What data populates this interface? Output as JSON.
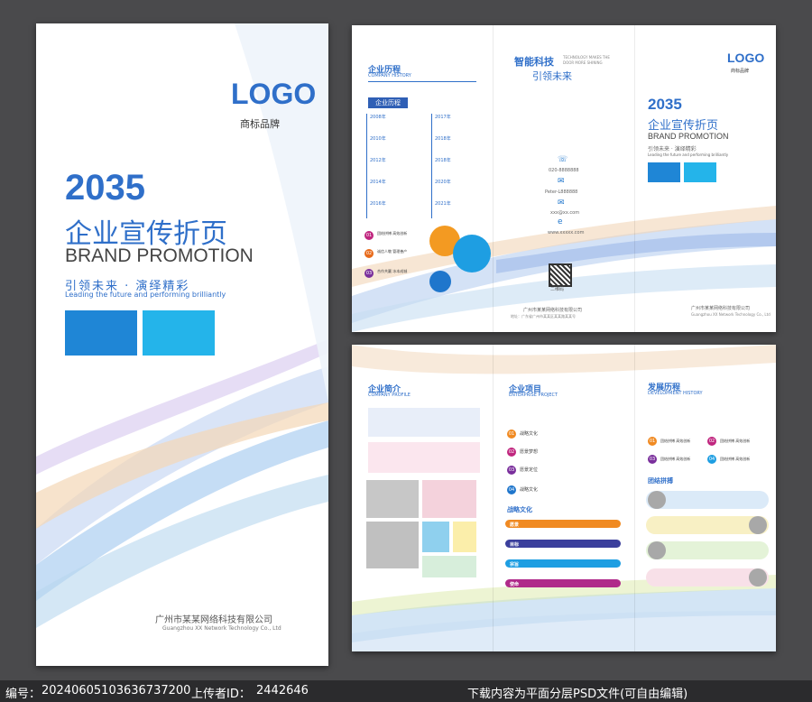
{
  "cover": {
    "logo": "LOGO",
    "logo_sub": "商标品牌",
    "year": "2035",
    "title_cn": "企业宣传折页",
    "title_en": "BRAND PROMOTION",
    "slogan_cn": "引领未来 · 演绎精彩",
    "slogan_en": "Leading the future and performing brilliantly",
    "company_cn": "广州市某某网络科技有限公司",
    "company_en": "Guangzhou XX Network Technology Co., Ltd"
  },
  "outer": {
    "history_title": "企业历程",
    "history_en": "COMPANY HISTORY",
    "history_tag": "企业历程",
    "years_left": [
      "2008年",
      "2010年",
      "2012年",
      "2014年",
      "2016年"
    ],
    "years_right": [
      "2017年",
      "2018年",
      "2018年",
      "2020年",
      "2021年"
    ],
    "points": [
      {
        "num": "01",
        "label": "团结拼搏 高效创新"
      },
      {
        "num": "02",
        "label": "诚信人敬 管理善产"
      },
      {
        "num": "03",
        "label": "合作共赢 冰本成城"
      }
    ],
    "mid_title_cn": "智能科技",
    "mid_title_en": "TECHNOLOGY MAKES THE DOOR MORE SHINING",
    "mid_sub": "引领未来",
    "phone": "020-8888888",
    "wechat": "Peter-L888888",
    "email": "xxx@xx.com",
    "web": "www.xxxxx.com",
    "qr_label": "二维码",
    "mid_addr1": "广州市某某网络科技有限公司",
    "mid_addr2": "地址：广东省广州市某某区某某路某某号",
    "logo": "LOGO",
    "logo_sub": "商标品牌",
    "year": "2035",
    "title_cn": "企业宣传折页",
    "title_en": "BRAND PROMOTION",
    "slogan_cn": "引领未来 · 演绎精彩",
    "slogan_en": "Leading the future and performing brilliantly",
    "company_cn": "广州市某某网络科技有限公司",
    "company_en": "Guangzhou XX Network Technology Co., Ltd"
  },
  "inner": {
    "profile_title": "企业简介",
    "profile_en": "COMPANY PROFILE",
    "project_title": "企业项目",
    "project_en": "ENTERPRISE PROJECT",
    "projects": [
      {
        "num": "01",
        "label": "战略文化"
      },
      {
        "num": "02",
        "label": "愿景梦想"
      },
      {
        "num": "03",
        "label": "愿景定位"
      },
      {
        "num": "04",
        "label": "战略文化"
      }
    ],
    "strategy_title": "战略文化",
    "strategy_pills": [
      "愿景",
      "目标",
      "宗旨",
      "使命"
    ],
    "dev_title": "发展历程",
    "dev_en": "DEVELOPMENT HISTORY",
    "dev_items": [
      {
        "num": "01",
        "label": "团结拼搏 高效创新"
      },
      {
        "num": "02",
        "label": "团结拼搏 高效创新"
      },
      {
        "num": "03",
        "label": "团结拼搏 高效创新"
      },
      {
        "num": "04",
        "label": "团结拼搏 高效创新"
      }
    ],
    "team_title": "团结拼搏"
  },
  "footer": {
    "id_label": "编号：",
    "id_value": "20240605103636737200",
    "uploader_label": "上传者ID：",
    "uploader_value": "2442646",
    "note": "下载内容为平面分层PSD文件(可自由编辑)"
  },
  "colors": {
    "accent": "#2f6fc9",
    "blue_box": "#1f86d6",
    "cyan_box": "#24b4ea"
  }
}
